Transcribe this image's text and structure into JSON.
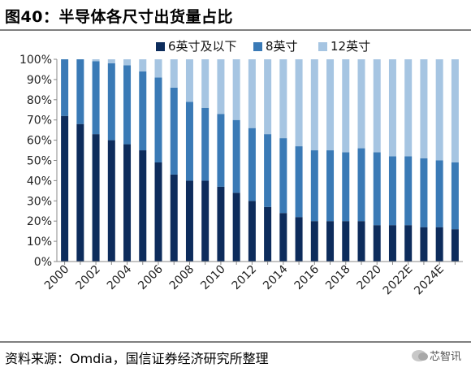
{
  "title": "图40：半导体各尺寸出货量占比",
  "source": "资料来源：Omdia，国信证券经济研究所整理",
  "watermark": "芯智讯",
  "colors": {
    "s6": "#0d2c5c",
    "s8": "#3a7ab6",
    "s12": "#a6c5e2"
  },
  "chart_data": {
    "type": "bar",
    "stacked": true,
    "x_labels": [
      "2000",
      "2001",
      "2002",
      "2003",
      "2004",
      "2005",
      "2006",
      "2007",
      "2008",
      "2009",
      "2010",
      "2011",
      "2012",
      "2013",
      "2014",
      "2015",
      "2016",
      "2017",
      "2018",
      "2019",
      "2020",
      "2021",
      "2022E",
      "2023E",
      "2024E",
      "2025E"
    ],
    "x_tick_labels": [
      "2000",
      "",
      "2002",
      "",
      "2004",
      "",
      "2006",
      "",
      "2008",
      "",
      "2010",
      "",
      "2012",
      "",
      "2014",
      "",
      "2016",
      "",
      "2018",
      "",
      "2020",
      "",
      "2022E",
      "",
      "2024E",
      ""
    ],
    "series": [
      {
        "name": "6英寸及以下",
        "values": [
          72,
          68,
          63,
          60,
          58,
          55,
          49,
          43,
          40,
          40,
          37,
          34,
          30,
          27,
          24,
          22,
          20,
          20,
          20,
          20,
          18,
          18,
          18,
          17,
          17,
          16
        ]
      },
      {
        "name": "8英寸",
        "values": [
          28,
          32,
          36,
          38,
          39,
          39,
          42,
          43,
          39,
          36,
          36,
          36,
          36,
          36,
          37,
          35,
          35,
          35,
          34,
          36,
          36,
          34,
          34,
          34,
          33,
          33
        ]
      },
      {
        "name": "12英寸",
        "values": [
          0,
          0,
          1,
          2,
          3,
          6,
          9,
          14,
          21,
          24,
          27,
          30,
          34,
          37,
          39,
          43,
          45,
          45,
          46,
          44,
          46,
          48,
          48,
          49,
          50,
          51
        ]
      }
    ],
    "y_ticks": [
      "0%",
      "10%",
      "20%",
      "30%",
      "40%",
      "50%",
      "60%",
      "70%",
      "80%",
      "90%",
      "100%"
    ],
    "ylim": [
      0,
      100
    ]
  }
}
